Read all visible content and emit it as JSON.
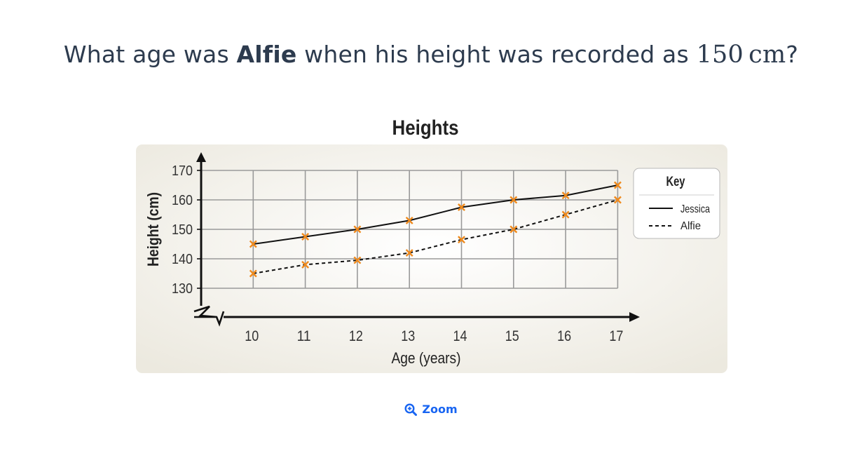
{
  "question": {
    "prefix": "What age was ",
    "name": "Alfie",
    "middle": " when his height was recorded as ",
    "value": "150",
    "unit": "cm",
    "suffix": "?"
  },
  "zoom": {
    "label": "Zoom",
    "icon": "zoom-in-icon"
  },
  "colors": {
    "text": "#2d3b4e",
    "accent": "#1865f2",
    "marker": "#f08a1c",
    "grid": "#9a9a9a",
    "panel": "#f0eee7"
  },
  "chart_data": {
    "type": "line",
    "title": "Heights",
    "xlabel": "Age (years)",
    "ylabel": "Height (cm)",
    "x": [
      10,
      11,
      12,
      13,
      14,
      15,
      16,
      17
    ],
    "xlim": [
      9,
      17
    ],
    "ylim": [
      120,
      170
    ],
    "yticks": [
      130,
      140,
      150,
      160,
      170
    ],
    "axis_break": true,
    "grid": true,
    "legend": {
      "title": "Key",
      "placement": "right"
    },
    "series": [
      {
        "name": "Jessica",
        "style": "solid",
        "values": [
          145,
          147.5,
          150,
          153,
          157.5,
          160,
          161.5,
          165
        ]
      },
      {
        "name": "Alfie",
        "style": "dashed",
        "values": [
          135,
          138,
          139.5,
          142,
          146.5,
          150,
          155,
          160
        ]
      }
    ]
  }
}
